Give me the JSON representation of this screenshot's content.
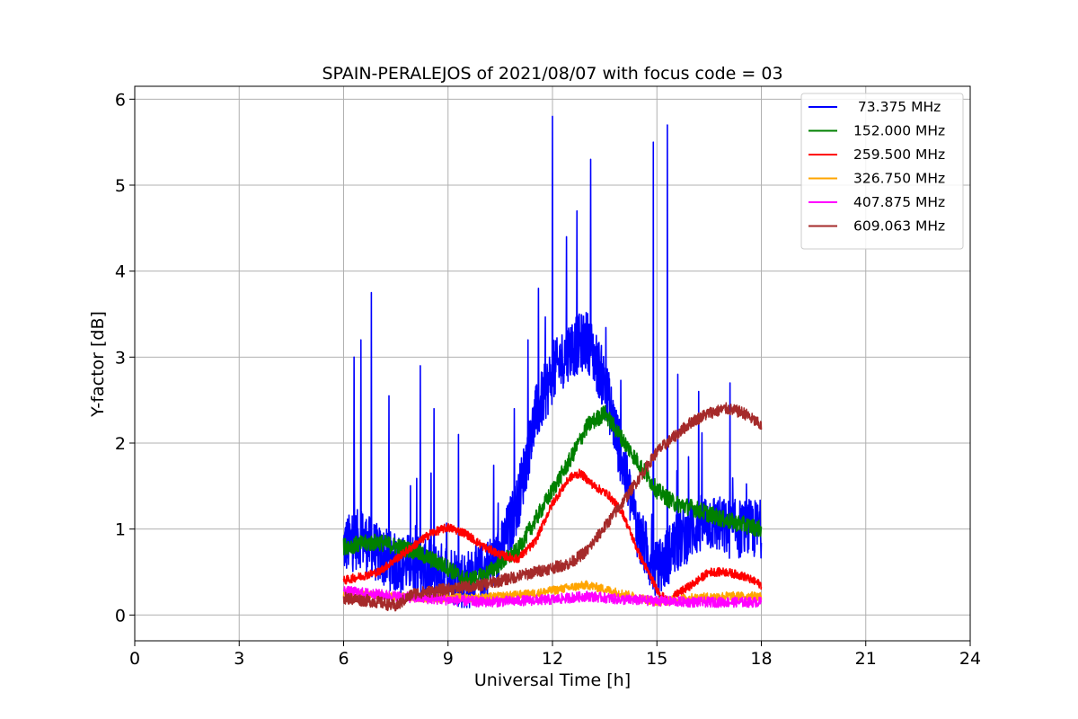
{
  "chart_data": {
    "type": "line",
    "title": "SPAIN-PERALEJOS of 2021/08/07 with focus code = 03",
    "xlabel": "Universal Time [h]",
    "ylabel": "Y-factor [dB]",
    "xlim": [
      0,
      24
    ],
    "ylim": [
      -0.3,
      6.15
    ],
    "xticks": [
      0,
      3,
      6,
      9,
      12,
      15,
      18,
      21,
      24
    ],
    "yticks": [
      0,
      1,
      2,
      3,
      4,
      5,
      6
    ],
    "grid": true,
    "legend_position": "top-right",
    "series": [
      {
        "name": " 73.375 MHz",
        "color": "#0000ff",
        "noise": 0.35,
        "x": [
          6.0,
          6.5,
          7.0,
          7.5,
          8.0,
          8.5,
          9.0,
          9.5,
          10.0,
          10.5,
          11.0,
          11.5,
          12.0,
          12.5,
          13.0,
          13.5,
          14.0,
          14.5,
          15.0,
          15.5,
          16.0,
          16.5,
          17.0,
          17.5,
          18.0
        ],
        "y": [
          0.8,
          0.9,
          0.7,
          0.6,
          0.6,
          0.5,
          0.5,
          0.4,
          0.5,
          0.7,
          1.3,
          2.3,
          2.8,
          3.1,
          3.2,
          2.7,
          1.8,
          0.9,
          0.5,
          0.8,
          1.0,
          1.1,
          1.0,
          1.0,
          1.0
        ],
        "spikes": [
          [
            6.3,
            3.0
          ],
          [
            6.5,
            3.2
          ],
          [
            6.8,
            3.75
          ],
          [
            7.3,
            2.55
          ],
          [
            8.2,
            2.9
          ],
          [
            8.6,
            2.4
          ],
          [
            9.3,
            2.1
          ],
          [
            10.9,
            2.4
          ],
          [
            11.3,
            3.2
          ],
          [
            11.6,
            3.8
          ],
          [
            12.0,
            5.8
          ],
          [
            12.4,
            4.4
          ],
          [
            12.7,
            4.7
          ],
          [
            13.1,
            5.3
          ],
          [
            13.6,
            2.5
          ],
          [
            14.9,
            5.5
          ],
          [
            15.3,
            5.7
          ],
          [
            15.6,
            2.8
          ],
          [
            16.2,
            2.6
          ],
          [
            17.1,
            2.7
          ]
        ]
      },
      {
        "name": "152.000 MHz",
        "color": "#008000",
        "noise": 0.1,
        "x": [
          6.0,
          7.0,
          8.0,
          9.0,
          9.5,
          10.0,
          11.0,
          11.5,
          12.0,
          12.5,
          13.0,
          13.5,
          14.0,
          14.5,
          15.0,
          15.5,
          16.0,
          17.0,
          18.0
        ],
        "y": [
          0.8,
          0.85,
          0.75,
          0.55,
          0.4,
          0.45,
          0.75,
          1.1,
          1.45,
          1.8,
          2.2,
          2.35,
          2.05,
          1.75,
          1.45,
          1.3,
          1.25,
          1.1,
          1.0
        ]
      },
      {
        "name": "259.500 MHz",
        "color": "#ff0000",
        "noise": 0.05,
        "x": [
          6.0,
          7.0,
          8.0,
          8.5,
          9.0,
          9.5,
          10.0,
          10.5,
          11.0,
          11.5,
          12.0,
          12.5,
          12.8,
          13.2,
          13.6,
          14.0,
          14.5,
          15.0,
          15.3,
          15.6,
          16.0,
          16.5,
          17.0,
          17.5,
          18.0
        ],
        "y": [
          0.4,
          0.5,
          0.8,
          0.95,
          1.02,
          0.95,
          0.8,
          0.7,
          0.65,
          0.85,
          1.3,
          1.6,
          1.65,
          1.5,
          1.4,
          1.2,
          0.7,
          0.3,
          0.15,
          0.25,
          0.35,
          0.5,
          0.5,
          0.45,
          0.35
        ]
      },
      {
        "name": "326.750 MHz",
        "color": "#ffa500",
        "noise": 0.05,
        "x": [
          6.0,
          8.0,
          10.0,
          11.5,
          12.5,
          13.0,
          13.5,
          14.0,
          15.0,
          16.0,
          17.0,
          18.0
        ],
        "y": [
          0.25,
          0.2,
          0.2,
          0.25,
          0.32,
          0.35,
          0.3,
          0.25,
          0.15,
          0.2,
          0.22,
          0.22
        ]
      },
      {
        "name": "407.875 MHz",
        "color": "#ff00ff",
        "noise": 0.06,
        "x": [
          6.0,
          8.0,
          10.0,
          12.0,
          13.0,
          14.0,
          16.0,
          18.0
        ],
        "y": [
          0.28,
          0.2,
          0.15,
          0.18,
          0.22,
          0.18,
          0.15,
          0.15
        ]
      },
      {
        "name": "609.063 MHz",
        "color": "#a52a2a",
        "noise": 0.07,
        "x": [
          6.0,
          7.0,
          7.5,
          8.0,
          9.0,
          10.0,
          11.0,
          12.0,
          12.5,
          13.0,
          14.0,
          15.0,
          16.0,
          16.5,
          17.0,
          17.5,
          18.0
        ],
        "y": [
          0.2,
          0.15,
          0.1,
          0.25,
          0.3,
          0.35,
          0.45,
          0.55,
          0.6,
          0.75,
          1.3,
          1.9,
          2.25,
          2.35,
          2.4,
          2.35,
          2.2
        ]
      }
    ]
  }
}
